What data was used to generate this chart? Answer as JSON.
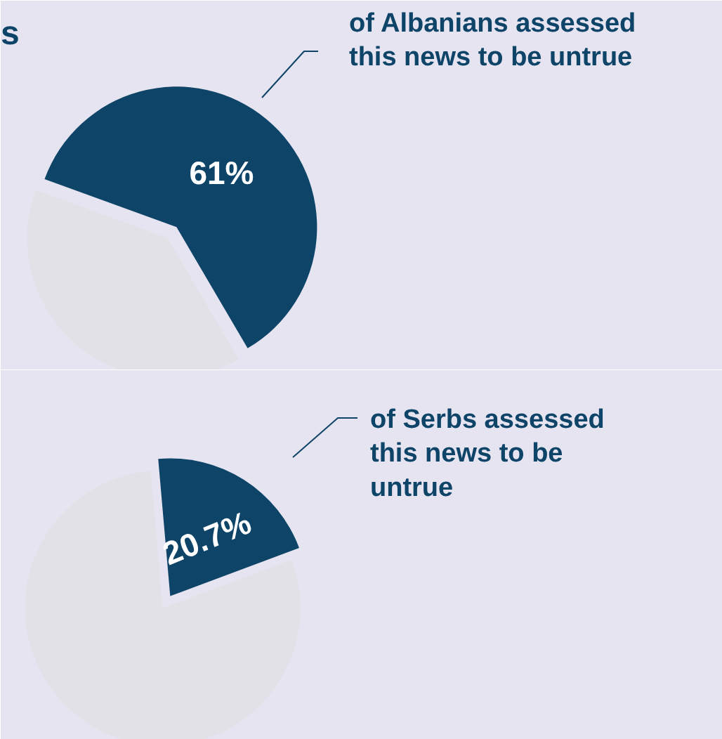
{
  "chart_data": [
    {
      "type": "pie",
      "title": "s",
      "categories": [
        null,
        null
      ],
      "values": [
        61,
        39
      ],
      "colors": [
        "#0d4468",
        "#e2e1e8"
      ],
      "value_labels": [
        "61%",
        null
      ],
      "annotations": [
        "of Albanians assessed this news to be untrue"
      ]
    },
    {
      "type": "pie",
      "categories": [
        null,
        null
      ],
      "values": [
        20.7,
        79.3
      ],
      "colors": [
        "#0d4468",
        "#e2e1e8"
      ],
      "value_labels": [
        "20.7%",
        null
      ],
      "annotations": [
        "of Serbs assessed this news to be untrue"
      ]
    }
  ]
}
